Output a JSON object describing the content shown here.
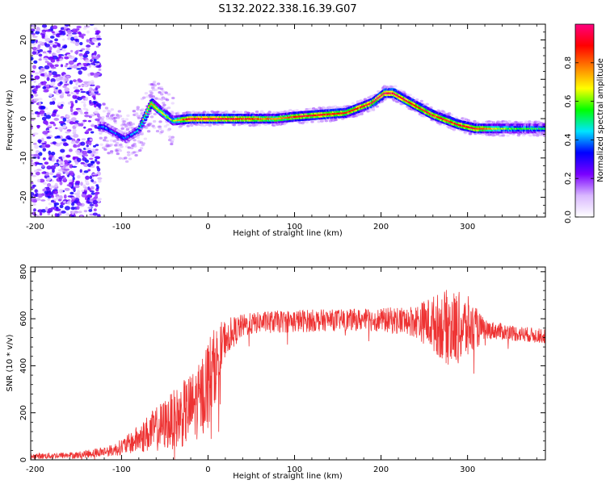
{
  "title": "S132.2022.338.16.39.G07",
  "chart_data": [
    {
      "type": "heatmap",
      "xlabel": "Height of straight line (km)",
      "ylabel": "Frequency (Hz)",
      "xlim": [
        -205,
        390
      ],
      "ylim": [
        -25,
        24
      ],
      "xticks": [
        -200,
        -100,
        0,
        100,
        200,
        300
      ],
      "yticks": [
        -20,
        -10,
        0,
        10,
        20
      ],
      "colorbar": {
        "label": "Normalized spectral amplitude",
        "range": [
          0,
          1
        ],
        "ticks": [
          "0.0",
          "0.2",
          "0.4",
          "0.6",
          "0.8"
        ],
        "tick_values": [
          0.0,
          0.2,
          0.4,
          0.6,
          0.8
        ],
        "colormap": [
          "#ffffff",
          "#d9b8ff",
          "#7a00ff",
          "#0000ff",
          "#00e5ff",
          "#00ff00",
          "#ffff00",
          "#ff8000",
          "#ff0000",
          "#ff0080"
        ]
      },
      "ridge": {
        "description_points_x_km": [
          -120,
          -95,
          -80,
          -65,
          -55,
          -40,
          -20,
          0,
          40,
          80,
          100,
          130,
          160,
          190,
          205,
          215,
          235,
          260,
          290,
          310,
          340,
          390
        ],
        "frequency_hz": [
          -2,
          -5,
          -3,
          4,
          2,
          -0.5,
          0,
          0,
          0,
          0,
          0.5,
          1,
          1.5,
          4,
          6.5,
          6.5,
          4,
          1,
          -1.5,
          -2.5,
          -2.5,
          -2.5
        ],
        "amplitude": [
          0.4,
          0.35,
          0.45,
          0.8,
          0.7,
          0.6,
          0.95,
          0.95,
          0.9,
          0.75,
          0.85,
          0.9,
          0.85,
          0.9,
          0.95,
          0.95,
          0.9,
          0.85,
          0.85,
          0.9,
          0.6,
          0.5
        ]
      }
    },
    {
      "type": "line",
      "xlabel": "Height of straight line (km)",
      "ylabel": "SNR (10 * v/v)",
      "xlim": [
        -205,
        390
      ],
      "ylim": [
        0,
        820
      ],
      "xticks": [
        -200,
        -100,
        0,
        100,
        200,
        300
      ],
      "yticks": [
        0,
        200,
        400,
        600,
        800
      ],
      "color": "#ee3333",
      "envelope": {
        "x": [
          -205,
          -150,
          -110,
          -90,
          -70,
          -50,
          -30,
          -10,
          0,
          10,
          20,
          40,
          60,
          100,
          150,
          200,
          240,
          260,
          280,
          300,
          320,
          350,
          390
        ],
        "mean": [
          15,
          20,
          40,
          70,
          110,
          150,
          190,
          250,
          330,
          420,
          520,
          570,
          585,
          590,
          595,
          595,
          590,
          580,
          560,
          560,
          555,
          540,
          525
        ],
        "spread": [
          12,
          15,
          25,
          45,
          80,
          110,
          140,
          160,
          200,
          150,
          80,
          50,
          45,
          50,
          45,
          50,
          70,
          120,
          170,
          140,
          40,
          35,
          30
        ]
      }
    }
  ]
}
